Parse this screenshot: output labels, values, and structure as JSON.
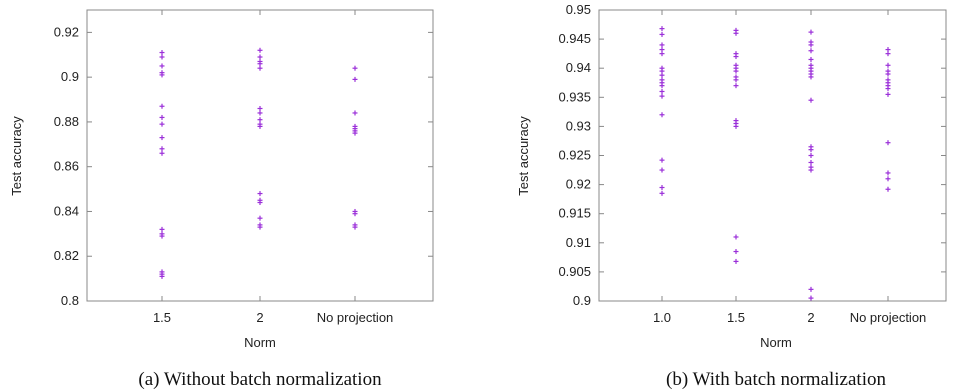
{
  "chart_data": [
    {
      "type": "scatter",
      "panel_id": "a",
      "caption": "(a) Without batch normalization",
      "title": "",
      "xlabel": "Norm",
      "ylabel": "Test accuracy",
      "ylim": [
        0.8,
        0.93
      ],
      "y_ticks": [
        0.8,
        0.82,
        0.84,
        0.86,
        0.88,
        0.9,
        0.92
      ],
      "y_tick_labels": [
        "0.8",
        "0.82",
        "0.84",
        "0.86",
        "0.88",
        "0.9",
        "0.92"
      ],
      "categories": [
        "1.5",
        "2",
        "No projection"
      ],
      "grid": false,
      "marker_color": "#9b30d9",
      "series": [
        {
          "category": "1.5",
          "values": [
            0.911,
            0.909,
            0.905,
            0.902,
            0.901,
            0.887,
            0.882,
            0.879,
            0.873,
            0.868,
            0.866,
            0.832,
            0.83,
            0.829,
            0.813,
            0.812,
            0.811
          ]
        },
        {
          "category": "2",
          "values": [
            0.912,
            0.909,
            0.907,
            0.906,
            0.904,
            0.886,
            0.884,
            0.881,
            0.879,
            0.878,
            0.848,
            0.845,
            0.844,
            0.837,
            0.834,
            0.833
          ]
        },
        {
          "category": "No projection",
          "values": [
            0.904,
            0.899,
            0.884,
            0.878,
            0.877,
            0.876,
            0.875,
            0.84,
            0.839,
            0.834,
            0.833
          ]
        }
      ]
    },
    {
      "type": "scatter",
      "panel_id": "b",
      "caption": "(b) With batch normalization",
      "title": "",
      "xlabel": "Norm",
      "ylabel": "Test accuracy",
      "ylim": [
        0.9,
        0.95
      ],
      "y_ticks": [
        0.9,
        0.905,
        0.91,
        0.915,
        0.92,
        0.925,
        0.93,
        0.935,
        0.94,
        0.945,
        0.95
      ],
      "y_tick_labels": [
        "0.9",
        "0.905",
        "0.91",
        "0.915",
        "0.92",
        "0.925",
        "0.93",
        "0.935",
        "0.94",
        "0.945",
        "0.95"
      ],
      "categories": [
        "1.0",
        "1.5",
        "2",
        "No projection"
      ],
      "grid": false,
      "marker_color": "#9b30d9",
      "series": [
        {
          "category": "1.0",
          "values": [
            0.9468,
            0.9458,
            0.944,
            0.9432,
            0.9425,
            0.94,
            0.9395,
            0.9388,
            0.938,
            0.9375,
            0.937,
            0.936,
            0.9352,
            0.932,
            0.9242,
            0.9225,
            0.9195,
            0.9185
          ]
        },
        {
          "category": "1.5",
          "values": [
            0.9465,
            0.946,
            0.9425,
            0.942,
            0.9405,
            0.94,
            0.9395,
            0.9385,
            0.938,
            0.937,
            0.931,
            0.9305,
            0.93,
            0.911,
            0.9085,
            0.9068
          ]
        },
        {
          "category": "2",
          "values": [
            0.9462,
            0.9445,
            0.944,
            0.943,
            0.9415,
            0.9405,
            0.94,
            0.9395,
            0.939,
            0.9385,
            0.9345,
            0.9265,
            0.926,
            0.925,
            0.9238,
            0.923,
            0.9225,
            0.902,
            0.9005
          ]
        },
        {
          "category": "No projection",
          "values": [
            0.9432,
            0.9425,
            0.9405,
            0.9395,
            0.939,
            0.938,
            0.9375,
            0.937,
            0.9365,
            0.9355,
            0.9272,
            0.922,
            0.921,
            0.9192
          ]
        }
      ]
    }
  ]
}
